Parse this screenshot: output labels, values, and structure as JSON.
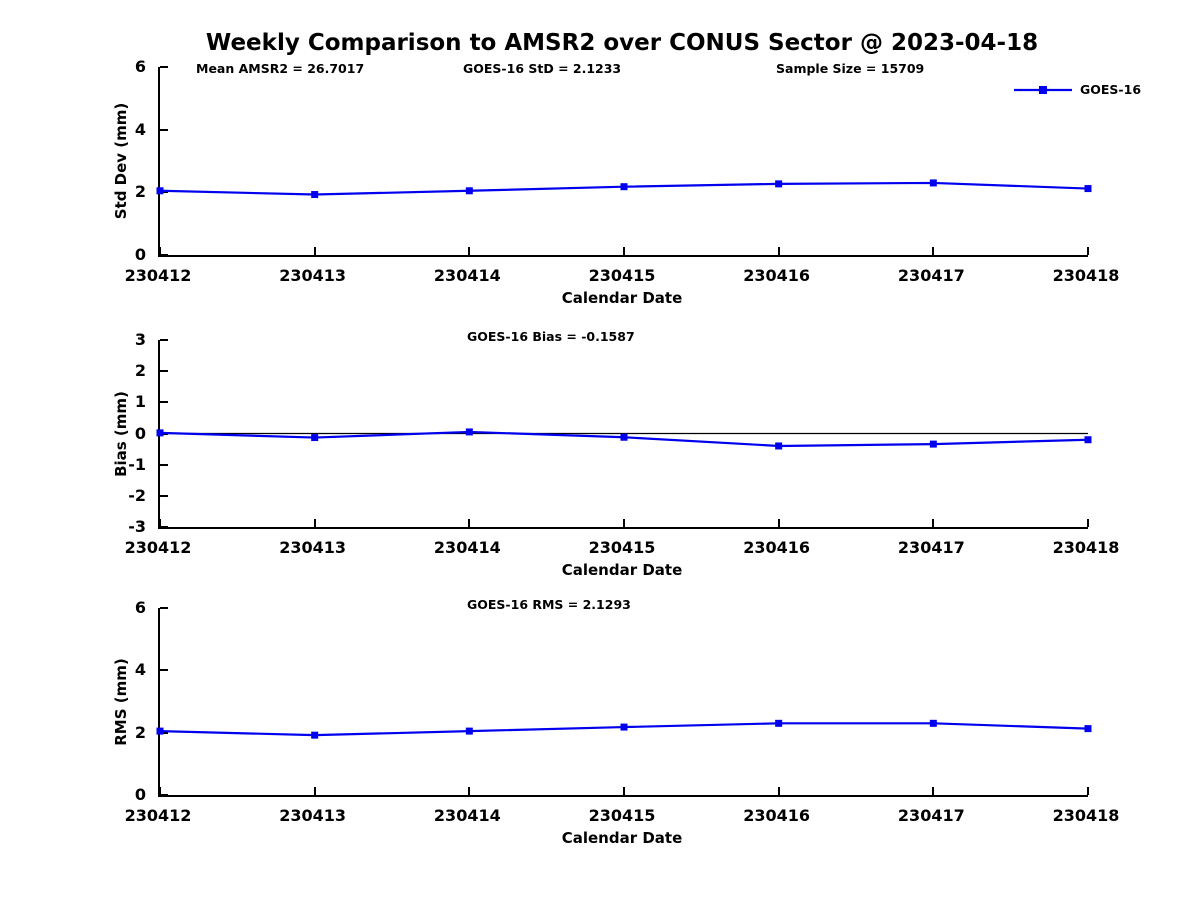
{
  "title": "Weekly Comparison to AMSR2 over CONUS Sector @ 2023-04-18",
  "annotations": {
    "mean_amsr2": "Mean AMSR2 = 26.7017",
    "goes_std": "GOES-16 StD = 2.1233",
    "sample_size": "Sample Size = 15709",
    "goes_bias": "GOES-16 Bias  = -0.1587",
    "goes_rms": "GOES-16 RMS = 2.1293"
  },
  "legend": {
    "label": "GOES-16",
    "marker": "filled-square"
  },
  "colors": {
    "line": "#0000ee",
    "axis": "#000000",
    "zero_line": "#000000",
    "background": "#ffffff"
  },
  "chart_data": [
    {
      "type": "line",
      "ylabel": "Std Dev (mm)",
      "xlabel": "Calendar Date",
      "categories": [
        "230412",
        "230413",
        "230414",
        "230415",
        "230416",
        "230417",
        "230418"
      ],
      "series": [
        {
          "name": "GOES-16",
          "values": [
            2.05,
            1.93,
            2.05,
            2.18,
            2.27,
            2.3,
            2.12
          ]
        }
      ],
      "ylim": [
        0,
        6
      ],
      "yticks": [
        0,
        2,
        4,
        6
      ],
      "grid": false,
      "zero_line": false,
      "legend_position": "top-right"
    },
    {
      "type": "line",
      "ylabel": "Bias (mm)",
      "xlabel": "Calendar Date",
      "categories": [
        "230412",
        "230413",
        "230414",
        "230415",
        "230416",
        "230417",
        "230418"
      ],
      "series": [
        {
          "name": "GOES-16",
          "values": [
            0.02,
            -0.13,
            0.05,
            -0.12,
            -0.4,
            -0.34,
            -0.2
          ]
        }
      ],
      "ylim": [
        -3,
        3
      ],
      "yticks": [
        -3,
        -2,
        -1,
        0,
        1,
        2,
        3
      ],
      "grid": false,
      "zero_line": true,
      "legend_position": "none"
    },
    {
      "type": "line",
      "ylabel": "RMS (mm)",
      "xlabel": "Calendar Date",
      "categories": [
        "230412",
        "230413",
        "230414",
        "230415",
        "230416",
        "230417",
        "230418"
      ],
      "series": [
        {
          "name": "GOES-16",
          "values": [
            2.05,
            1.92,
            2.05,
            2.18,
            2.3,
            2.3,
            2.13
          ]
        }
      ],
      "ylim": [
        0,
        6
      ],
      "yticks": [
        0,
        2,
        4,
        6
      ],
      "grid": false,
      "zero_line": false,
      "legend_position": "none"
    }
  ]
}
